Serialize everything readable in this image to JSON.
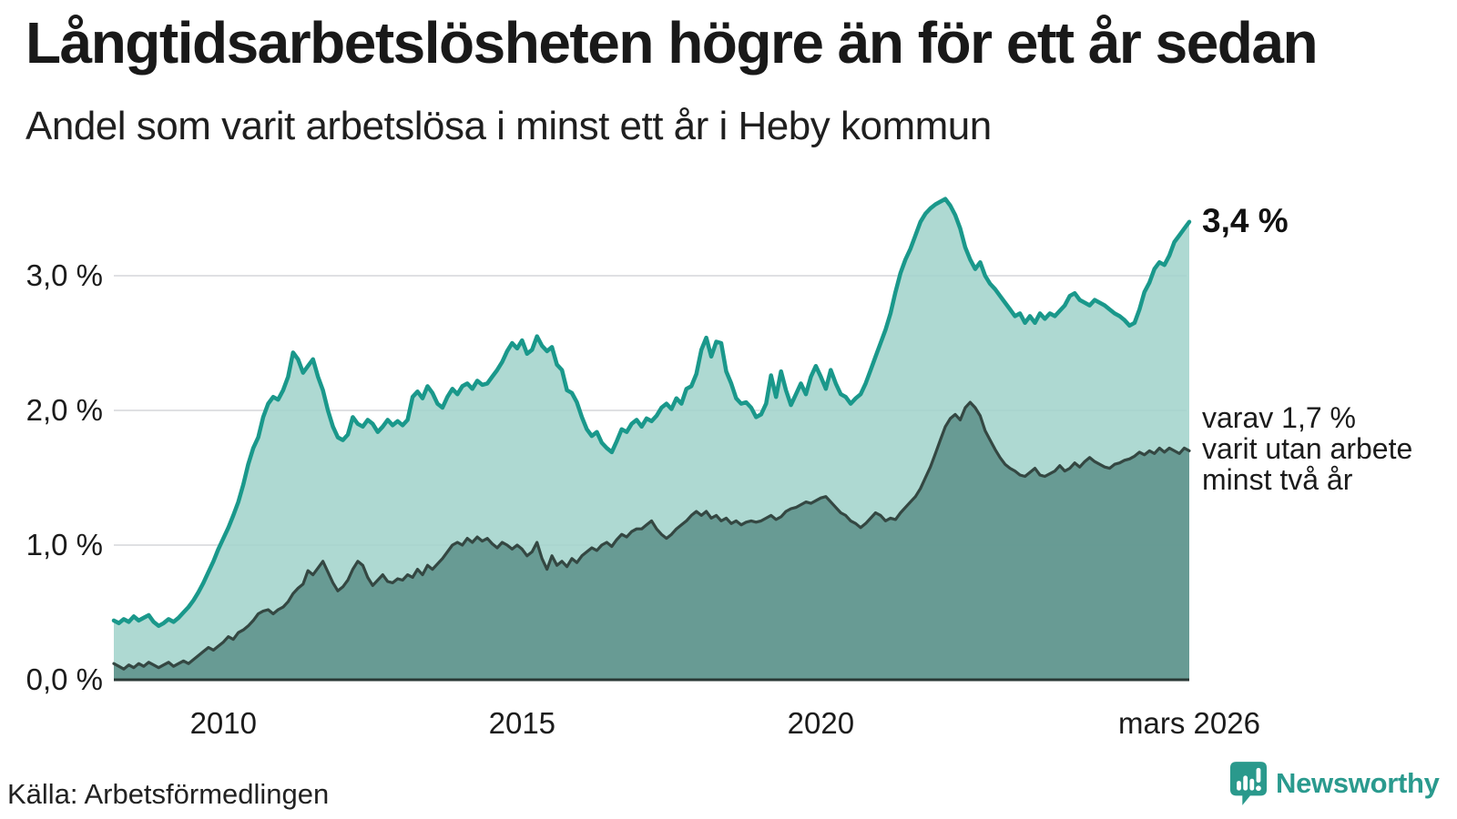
{
  "header": {
    "title": "Långtidsarbetslösheten högre än för ett år sedan",
    "subtitle": "Andel som varit arbetslösa i minst ett år i Heby kommun"
  },
  "chart_data": {
    "type": "area",
    "title": "Långtidsarbetslösheten högre än för ett år sedan",
    "subtitle": "Andel som varit arbetslösa i minst ett år i Heby kommun",
    "unit": "%",
    "grid": true,
    "legend_position": "none",
    "ylim": [
      0,
      3.7
    ],
    "x_start": 2008.1667,
    "x_end": 2026.1667,
    "points_per_year": 12,
    "x_ticks": [
      {
        "t": 2010,
        "label": "2010"
      },
      {
        "t": 2015,
        "label": "2015"
      },
      {
        "t": 2020,
        "label": "2020"
      },
      {
        "t": 2026.1667,
        "label": "mars 2026"
      }
    ],
    "y_ticks": [
      {
        "v": 0,
        "label": "0,0 %"
      },
      {
        "v": 1,
        "label": "1,0 %"
      },
      {
        "v": 2,
        "label": "2,0 %"
      },
      {
        "v": 3,
        "label": "3,0 %"
      }
    ],
    "series": [
      {
        "name": "arbetslösa minst ett år",
        "line_color": "#1a988b",
        "fill_color": "#a2d3cb",
        "values": [
          0.44,
          0.42,
          0.45,
          0.43,
          0.47,
          0.44,
          0.46,
          0.48,
          0.43,
          0.4,
          0.42,
          0.45,
          0.43,
          0.46,
          0.5,
          0.54,
          0.59,
          0.65,
          0.72,
          0.8,
          0.88,
          0.97,
          1.05,
          1.13,
          1.22,
          1.32,
          1.45,
          1.6,
          1.72,
          1.8,
          1.95,
          2.05,
          2.1,
          2.08,
          2.15,
          2.25,
          2.43,
          2.38,
          2.28,
          2.33,
          2.38,
          2.25,
          2.15,
          2.0,
          1.88,
          1.8,
          1.78,
          1.82,
          1.95,
          1.9,
          1.88,
          1.93,
          1.9,
          1.84,
          1.88,
          1.93,
          1.89,
          1.92,
          1.89,
          1.93,
          2.1,
          2.14,
          2.09,
          2.18,
          2.13,
          2.05,
          2.02,
          2.1,
          2.16,
          2.12,
          2.18,
          2.2,
          2.16,
          2.22,
          2.19,
          2.2,
          2.25,
          2.3,
          2.36,
          2.44,
          2.5,
          2.46,
          2.52,
          2.42,
          2.45,
          2.55,
          2.48,
          2.44,
          2.47,
          2.34,
          2.3,
          2.15,
          2.13,
          2.06,
          1.95,
          1.86,
          1.81,
          1.84,
          1.76,
          1.72,
          1.69,
          1.77,
          1.86,
          1.84,
          1.9,
          1.93,
          1.88,
          1.94,
          1.92,
          1.96,
          2.02,
          2.05,
          2.01,
          2.09,
          2.05,
          2.16,
          2.18,
          2.27,
          2.45,
          2.54,
          2.4,
          2.51,
          2.5,
          2.29,
          2.2,
          2.09,
          2.05,
          2.06,
          2.02,
          1.95,
          1.97,
          2.05,
          2.26,
          2.1,
          2.29,
          2.15,
          2.04,
          2.12,
          2.2,
          2.12,
          2.25,
          2.33,
          2.25,
          2.16,
          2.3,
          2.2,
          2.12,
          2.1,
          2.05,
          2.09,
          2.12,
          2.2,
          2.3,
          2.4,
          2.5,
          2.6,
          2.72,
          2.88,
          3.02,
          3.12,
          3.2,
          3.3,
          3.4,
          3.46,
          3.5,
          3.53,
          3.55,
          3.57,
          3.52,
          3.45,
          3.35,
          3.21,
          3.12,
          3.05,
          3.1,
          3.0,
          2.94,
          2.9,
          2.85,
          2.8,
          2.75,
          2.7,
          2.72,
          2.65,
          2.7,
          2.65,
          2.72,
          2.68,
          2.72,
          2.7,
          2.74,
          2.78,
          2.85,
          2.87,
          2.82,
          2.8,
          2.78,
          2.82,
          2.8,
          2.78,
          2.75,
          2.72,
          2.7,
          2.67,
          2.63,
          2.65,
          2.75,
          2.88,
          2.95,
          3.05,
          3.1,
          3.08,
          3.15,
          3.25,
          3.3,
          3.35,
          3.4
        ]
      },
      {
        "name": "arbetslösa minst två år",
        "line_color": "#344742",
        "fill_color": "#5d928b",
        "values": [
          0.12,
          0.1,
          0.08,
          0.11,
          0.09,
          0.12,
          0.1,
          0.13,
          0.11,
          0.09,
          0.11,
          0.13,
          0.1,
          0.12,
          0.14,
          0.12,
          0.15,
          0.18,
          0.21,
          0.24,
          0.22,
          0.25,
          0.28,
          0.32,
          0.3,
          0.35,
          0.37,
          0.4,
          0.44,
          0.49,
          0.51,
          0.52,
          0.49,
          0.52,
          0.54,
          0.58,
          0.64,
          0.68,
          0.71,
          0.81,
          0.78,
          0.83,
          0.88,
          0.8,
          0.72,
          0.66,
          0.69,
          0.74,
          0.82,
          0.88,
          0.85,
          0.76,
          0.7,
          0.74,
          0.78,
          0.73,
          0.72,
          0.75,
          0.74,
          0.78,
          0.76,
          0.82,
          0.78,
          0.85,
          0.82,
          0.86,
          0.9,
          0.95,
          1.0,
          1.02,
          1.0,
          1.05,
          1.02,
          1.06,
          1.03,
          1.05,
          1.01,
          0.98,
          1.02,
          1.0,
          0.97,
          1.0,
          0.97,
          0.92,
          0.95,
          1.02,
          0.9,
          0.82,
          0.92,
          0.85,
          0.88,
          0.84,
          0.9,
          0.87,
          0.92,
          0.95,
          0.98,
          0.96,
          1.0,
          1.02,
          0.99,
          1.04,
          1.08,
          1.06,
          1.1,
          1.12,
          1.12,
          1.15,
          1.18,
          1.12,
          1.08,
          1.05,
          1.08,
          1.12,
          1.15,
          1.18,
          1.22,
          1.25,
          1.22,
          1.25,
          1.2,
          1.22,
          1.18,
          1.2,
          1.16,
          1.18,
          1.15,
          1.17,
          1.18,
          1.17,
          1.18,
          1.2,
          1.22,
          1.19,
          1.21,
          1.25,
          1.27,
          1.28,
          1.3,
          1.32,
          1.31,
          1.33,
          1.35,
          1.36,
          1.32,
          1.28,
          1.24,
          1.22,
          1.18,
          1.16,
          1.13,
          1.16,
          1.2,
          1.24,
          1.22,
          1.18,
          1.2,
          1.19,
          1.24,
          1.28,
          1.32,
          1.36,
          1.42,
          1.5,
          1.58,
          1.68,
          1.78,
          1.88,
          1.94,
          1.97,
          1.93,
          2.02,
          2.06,
          2.02,
          1.96,
          1.85,
          1.78,
          1.71,
          1.65,
          1.6,
          1.57,
          1.55,
          1.52,
          1.51,
          1.54,
          1.57,
          1.52,
          1.51,
          1.53,
          1.55,
          1.59,
          1.55,
          1.57,
          1.61,
          1.58,
          1.62,
          1.65,
          1.62,
          1.6,
          1.58,
          1.57,
          1.6,
          1.61,
          1.63,
          1.64,
          1.66,
          1.69,
          1.67,
          1.7,
          1.68,
          1.72,
          1.69,
          1.72,
          1.7,
          1.68,
          1.72,
          1.7
        ]
      }
    ],
    "end_values": {
      "total": 3.4,
      "two_years": 1.7
    },
    "end_label_total": "3,4 %",
    "end_label_two_years": "varav 1,7 %\nvarit utan arbete\nminst två år"
  },
  "colors": {
    "accent_teal": "#1a988b",
    "fill_light": "#a2d3cb",
    "line_dark": "#344742",
    "fill_dark": "#5d928b",
    "gridline": "#dfe0e3",
    "baseline": "#2a3835",
    "brand_teal": "#2a998c"
  },
  "footer": {
    "source": "Källa: Arbetsförmedlingen",
    "brand": "Newsworthy"
  }
}
